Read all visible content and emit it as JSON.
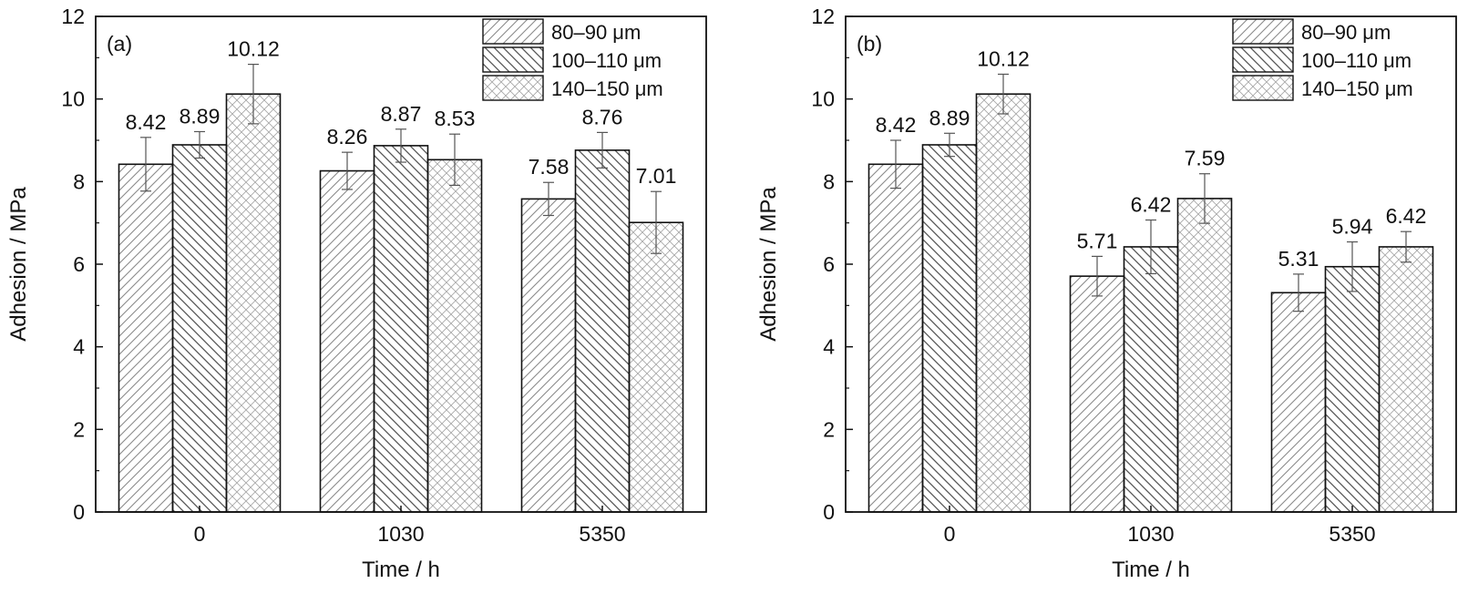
{
  "chart_data": [
    {
      "type": "bar",
      "panel_label": "(a)",
      "categories": [
        "0",
        "1030",
        "5350"
      ],
      "series": [
        {
          "name": "80–90 μm",
          "values": [
            8.42,
            8.26,
            7.58
          ],
          "errors": [
            0.65,
            0.45,
            0.4
          ],
          "labels": [
            "8.42",
            "8.26",
            "7.58"
          ],
          "pattern": "diag-right"
        },
        {
          "name": "100–110 μm",
          "values": [
            8.89,
            8.87,
            8.76
          ],
          "errors": [
            0.32,
            0.4,
            0.43
          ],
          "labels": [
            "8.89",
            "8.87",
            "8.76"
          ],
          "pattern": "diag-left"
        },
        {
          "name": "140–150 μm",
          "values": [
            10.12,
            8.53,
            7.01
          ],
          "errors": [
            0.72,
            0.62,
            0.75
          ],
          "labels": [
            "10.12",
            "8.53",
            "7.01"
          ],
          "pattern": "cross"
        }
      ],
      "xlabel": "Time / h",
      "ylabel": "Adhesion / MPa",
      "ylim": [
        0,
        12
      ],
      "yticks": [
        "0",
        "2",
        "4",
        "6",
        "8",
        "10",
        "12"
      ],
      "legend_position": "top-right",
      "grid": false
    },
    {
      "type": "bar",
      "panel_label": "(b)",
      "categories": [
        "0",
        "1030",
        "5350"
      ],
      "series": [
        {
          "name": "80–90 μm",
          "values": [
            8.42,
            5.71,
            5.31
          ],
          "errors": [
            0.58,
            0.48,
            0.45
          ],
          "labels": [
            "8.42",
            "5.71",
            "5.31"
          ],
          "pattern": "diag-right"
        },
        {
          "name": "100–110 μm",
          "values": [
            8.89,
            6.42,
            5.94
          ],
          "errors": [
            0.28,
            0.65,
            0.6
          ],
          "labels": [
            "8.89",
            "6.42",
            "5.94"
          ],
          "pattern": "diag-left"
        },
        {
          "name": "140–150 μm",
          "values": [
            10.12,
            7.59,
            6.42
          ],
          "errors": [
            0.48,
            0.6,
            0.37
          ],
          "labels": [
            "10.12",
            "7.59",
            "6.42"
          ],
          "pattern": "cross"
        }
      ],
      "xlabel": "Time / h",
      "ylabel": "Adhesion / MPa",
      "ylim": [
        0,
        12
      ],
      "yticks": [
        "0",
        "2",
        "4",
        "6",
        "8",
        "10",
        "12"
      ],
      "legend_position": "top-right",
      "grid": false
    }
  ],
  "colors": {
    "axis": "#111111",
    "bar_fill": "#ffffff",
    "hatch": "#888888",
    "error_bar": "#555555"
  }
}
